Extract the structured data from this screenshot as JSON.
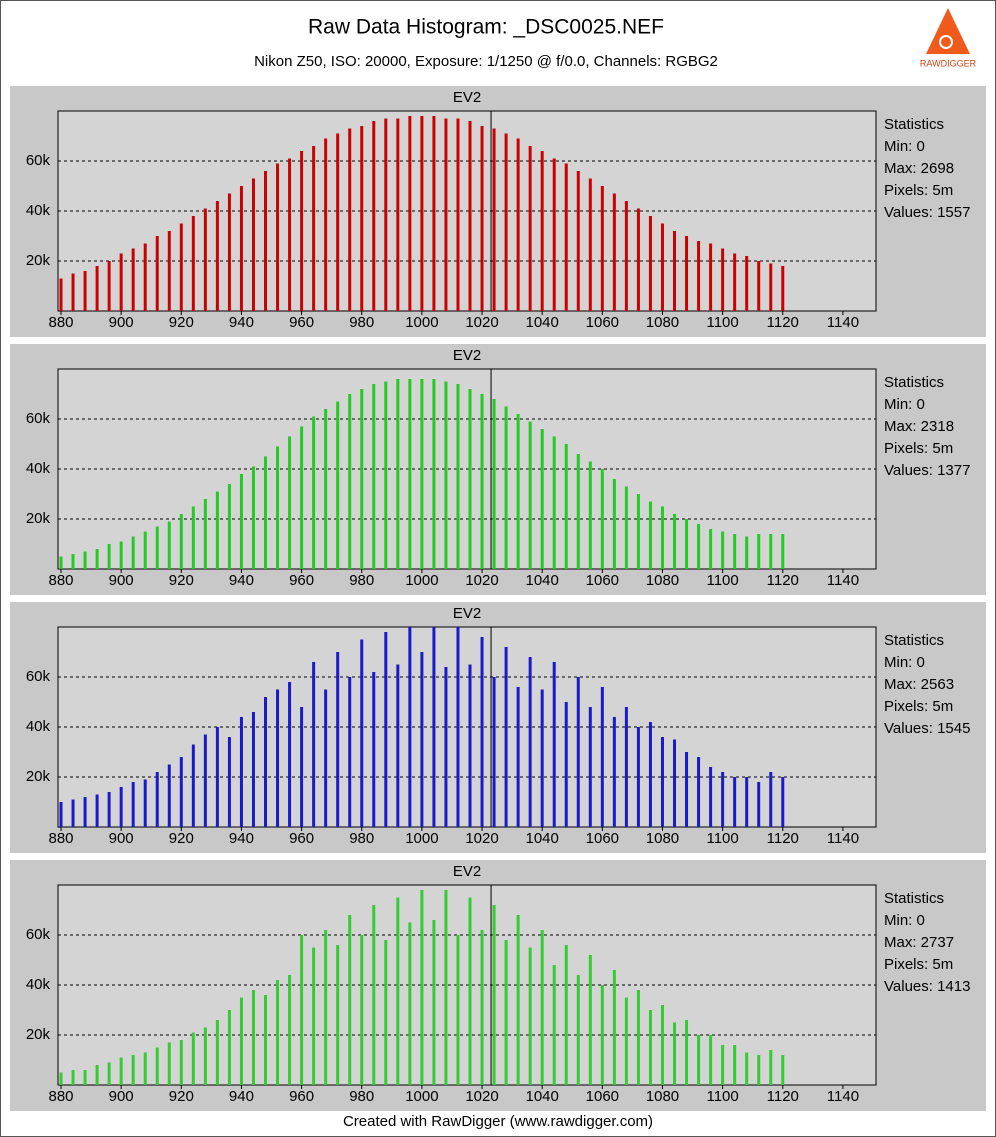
{
  "title": "Raw Data Histogram: _DSC0025.NEF",
  "subtitle": "Nikon Z50, ISO: 20000, Exposure: 1/1250 @ f/0.0, Channels: RGBG2",
  "footer": "Created with RawDigger (www.rawdigger.com)",
  "logo_text": "RAWDIGGER",
  "chart_data": [
    {
      "type": "bar",
      "title": "EV2",
      "color": "#cc0000",
      "marker_x": 1023,
      "x": [
        880,
        884,
        888,
        892,
        896,
        900,
        904,
        908,
        912,
        916,
        920,
        924,
        928,
        932,
        936,
        940,
        944,
        948,
        952,
        956,
        960,
        964,
        968,
        972,
        976,
        980,
        984,
        988,
        992,
        996,
        1000,
        1004,
        1008,
        1012,
        1016,
        1020,
        1024,
        1028,
        1032,
        1036,
        1040,
        1044,
        1048,
        1052,
        1056,
        1060,
        1064,
        1068,
        1072,
        1076,
        1080,
        1084,
        1088,
        1092,
        1096,
        1100,
        1104,
        1108,
        1112,
        1116,
        1120
      ],
      "values": [
        13000,
        15000,
        16000,
        18000,
        20000,
        23000,
        25000,
        27000,
        30000,
        32000,
        35000,
        38000,
        41000,
        44000,
        47000,
        50000,
        53000,
        56000,
        59000,
        61000,
        64000,
        66000,
        69000,
        71000,
        73000,
        74000,
        76000,
        77000,
        77000,
        78000,
        78000,
        78000,
        77000,
        77000,
        76000,
        74000,
        73000,
        71000,
        69000,
        66000,
        64000,
        61000,
        59000,
        56000,
        53000,
        50000,
        47000,
        44000,
        41000,
        38000,
        35000,
        32000,
        30000,
        28000,
        27000,
        25000,
        23000,
        22000,
        20000,
        19000,
        18000
      ],
      "xlim": [
        879,
        1151
      ],
      "xticks": [
        880,
        900,
        920,
        940,
        960,
        980,
        1000,
        1020,
        1040,
        1060,
        1080,
        1100,
        1120,
        1140
      ],
      "ylim": [
        0,
        80000
      ],
      "yticks": [
        {
          "value": 20000,
          "label": "20k"
        },
        {
          "value": 40000,
          "label": "40k"
        },
        {
          "value": 60000,
          "label": "60k"
        }
      ],
      "grid": true,
      "stats": [
        "Statistics",
        "Min: 0",
        "Max: 2698",
        "Pixels: 5m",
        "Values: 1557"
      ]
    },
    {
      "type": "bar",
      "title": "EV2",
      "color": "#22cc22",
      "marker_x": 1023,
      "x": [
        880,
        884,
        888,
        892,
        896,
        900,
        904,
        908,
        912,
        916,
        920,
        924,
        928,
        932,
        936,
        940,
        944,
        948,
        952,
        956,
        960,
        964,
        968,
        972,
        976,
        980,
        984,
        988,
        992,
        996,
        1000,
        1004,
        1008,
        1012,
        1016,
        1020,
        1024,
        1028,
        1032,
        1036,
        1040,
        1044,
        1048,
        1052,
        1056,
        1060,
        1064,
        1068,
        1072,
        1076,
        1080,
        1084,
        1088,
        1092,
        1096,
        1100,
        1104,
        1108,
        1112,
        1116,
        1120
      ],
      "values": [
        5000,
        6000,
        7000,
        8000,
        10000,
        11000,
        13000,
        15000,
        17000,
        19000,
        22000,
        25000,
        28000,
        31000,
        34000,
        38000,
        41000,
        45000,
        49000,
        53000,
        57000,
        61000,
        64000,
        67000,
        70000,
        72000,
        74000,
        75000,
        76000,
        76000,
        76000,
        76000,
        75000,
        74000,
        72000,
        70000,
        68000,
        65000,
        62000,
        59000,
        56000,
        53000,
        50000,
        46000,
        43000,
        40000,
        36000,
        33000,
        30000,
        27000,
        25000,
        22000,
        20000,
        18000,
        16000,
        15000,
        14000,
        13000,
        14000,
        14000,
        14000
      ],
      "xlim": [
        879,
        1151
      ],
      "xticks": [
        880,
        900,
        920,
        940,
        960,
        980,
        1000,
        1020,
        1040,
        1060,
        1080,
        1100,
        1120,
        1140
      ],
      "ylim": [
        0,
        80000
      ],
      "yticks": [
        {
          "value": 20000,
          "label": "20k"
        },
        {
          "value": 40000,
          "label": "40k"
        },
        {
          "value": 60000,
          "label": "60k"
        }
      ],
      "grid": true,
      "stats": [
        "Statistics",
        "Min: 0",
        "Max: 2318",
        "Pixels: 5m",
        "Values: 1377"
      ]
    },
    {
      "type": "bar",
      "title": "EV2",
      "color": "#1a1acc",
      "marker_x": 1023,
      "x": [
        880,
        884,
        888,
        892,
        896,
        900,
        904,
        908,
        912,
        916,
        920,
        924,
        928,
        932,
        936,
        940,
        944,
        948,
        952,
        956,
        960,
        964,
        968,
        972,
        976,
        980,
        984,
        988,
        992,
        996,
        1000,
        1004,
        1008,
        1012,
        1016,
        1020,
        1024,
        1028,
        1032,
        1036,
        1040,
        1044,
        1048,
        1052,
        1056,
        1060,
        1064,
        1068,
        1072,
        1076,
        1080,
        1084,
        1088,
        1092,
        1096,
        1100,
        1104,
        1108,
        1112,
        1116,
        1120
      ],
      "values": [
        10000,
        11000,
        12000,
        13000,
        14000,
        16000,
        18000,
        19000,
        22000,
        25000,
        28000,
        33000,
        37000,
        40000,
        36000,
        44000,
        46000,
        52000,
        55000,
        58000,
        48000,
        66000,
        55000,
        70000,
        60000,
        75000,
        62000,
        78000,
        65000,
        80000,
        70000,
        80000,
        64000,
        80000,
        65000,
        76000,
        60000,
        72000,
        56000,
        68000,
        55000,
        66000,
        50000,
        60000,
        48000,
        56000,
        44000,
        48000,
        40000,
        42000,
        36000,
        35000,
        30000,
        28000,
        24000,
        22000,
        20000,
        20000,
        18000,
        22000,
        20000
      ],
      "xlim": [
        879,
        1151
      ],
      "xticks": [
        880,
        900,
        920,
        940,
        960,
        980,
        1000,
        1020,
        1040,
        1060,
        1080,
        1100,
        1120,
        1140
      ],
      "ylim": [
        0,
        80000
      ],
      "yticks": [
        {
          "value": 20000,
          "label": "20k"
        },
        {
          "value": 40000,
          "label": "40k"
        },
        {
          "value": 60000,
          "label": "60k"
        }
      ],
      "grid": true,
      "stats": [
        "Statistics",
        "Min: 0",
        "Max: 2563",
        "Pixels: 5m",
        "Values: 1545"
      ]
    },
    {
      "type": "bar",
      "title": "EV2",
      "color": "#33cc33",
      "marker_x": 1023,
      "x": [
        880,
        884,
        888,
        892,
        896,
        900,
        904,
        908,
        912,
        916,
        920,
        924,
        928,
        932,
        936,
        940,
        944,
        948,
        952,
        956,
        960,
        964,
        968,
        972,
        976,
        980,
        984,
        988,
        992,
        996,
        1000,
        1004,
        1008,
        1012,
        1016,
        1020,
        1024,
        1028,
        1032,
        1036,
        1040,
        1044,
        1048,
        1052,
        1056,
        1060,
        1064,
        1068,
        1072,
        1076,
        1080,
        1084,
        1088,
        1092,
        1096,
        1100,
        1104,
        1108,
        1112,
        1116,
        1120
      ],
      "values": [
        5000,
        6000,
        6000,
        8000,
        9000,
        11000,
        12000,
        13000,
        15000,
        17000,
        18000,
        21000,
        23000,
        26000,
        30000,
        35000,
        38000,
        36000,
        42000,
        44000,
        60000,
        55000,
        62000,
        56000,
        68000,
        60000,
        72000,
        58000,
        75000,
        65000,
        78000,
        66000,
        78000,
        60000,
        75000,
        62000,
        72000,
        58000,
        68000,
        55000,
        62000,
        48000,
        56000,
        44000,
        52000,
        40000,
        46000,
        35000,
        38000,
        30000,
        32000,
        25000,
        26000,
        20000,
        20000,
        16000,
        16000,
        13000,
        12000,
        14000,
        12000
      ],
      "xlim": [
        879,
        1151
      ],
      "xticks": [
        880,
        900,
        920,
        940,
        960,
        980,
        1000,
        1020,
        1040,
        1060,
        1080,
        1100,
        1120,
        1140
      ],
      "ylim": [
        0,
        80000
      ],
      "yticks": [
        {
          "value": 20000,
          "label": "20k"
        },
        {
          "value": 40000,
          "label": "40k"
        },
        {
          "value": 60000,
          "label": "60k"
        }
      ],
      "grid": true,
      "stats": [
        "Statistics",
        "Min: 0",
        "Max: 2737",
        "Pixels: 5m",
        "Values: 1413"
      ]
    }
  ]
}
